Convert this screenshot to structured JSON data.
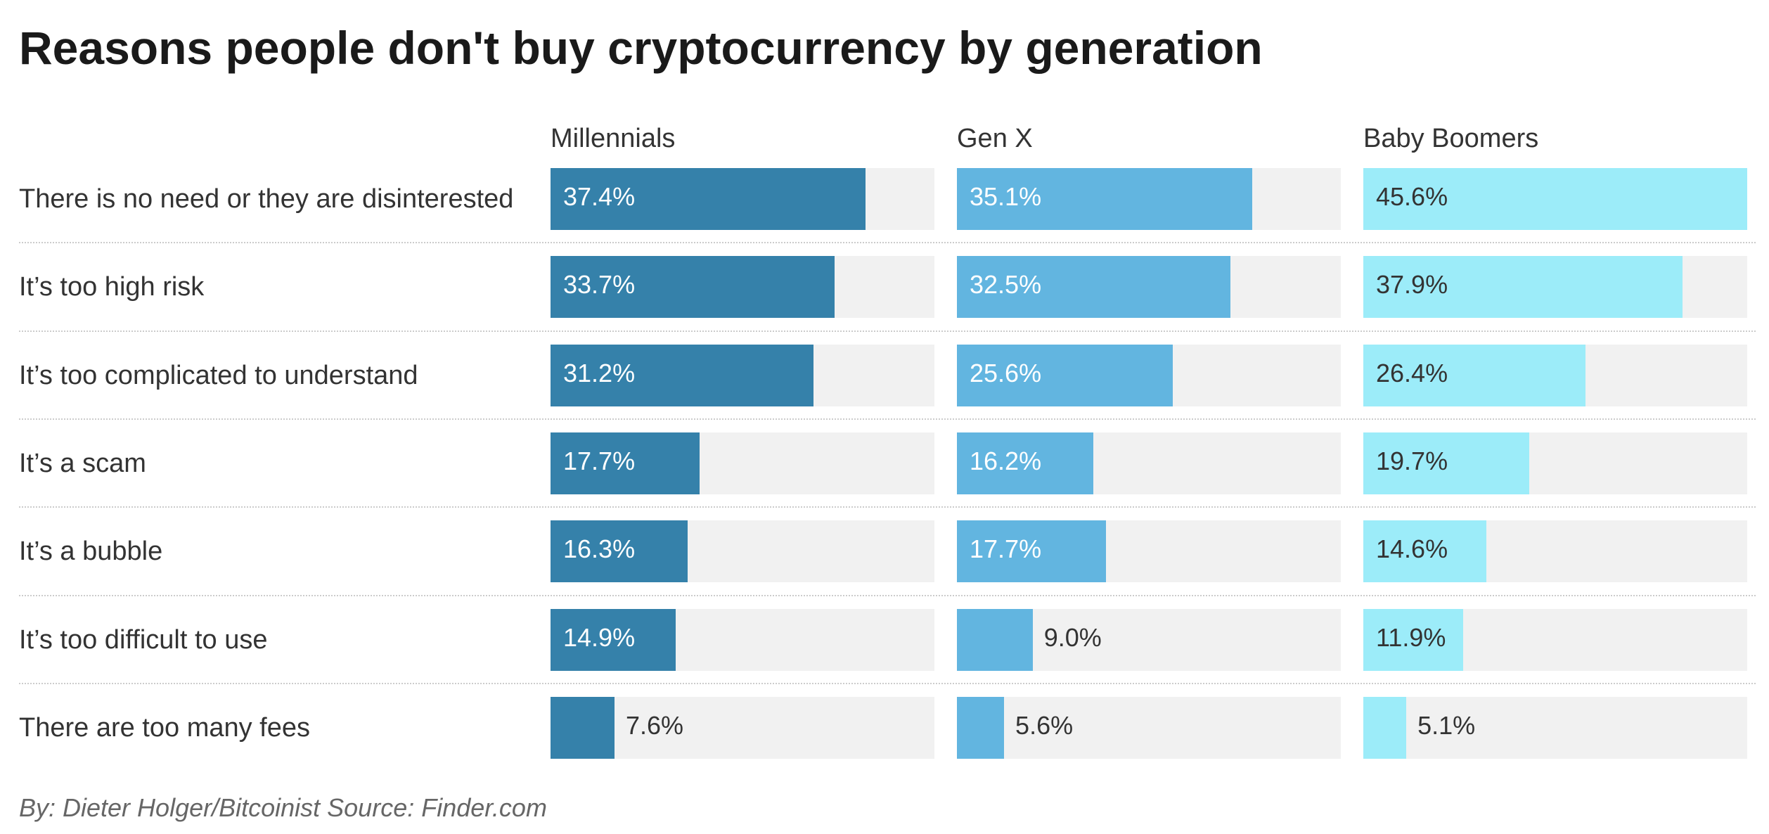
{
  "chart_data": {
    "type": "bar",
    "orientation": "horizontal",
    "layout": "small-multiples",
    "title": "Reasons people don't buy cryptocurrency by generation",
    "categories": [
      "There is no need or they are disinterested",
      "It’s too high risk",
      "It’s too complicated to understand",
      "It’s a scam",
      "It’s a bubble",
      "It’s too difficult to use",
      "There are too many fees"
    ],
    "series": [
      {
        "name": "Millennials",
        "color": "#3581aa",
        "values": [
          37.4,
          33.7,
          31.2,
          17.7,
          16.3,
          14.9,
          7.6
        ]
      },
      {
        "name": "Gen X",
        "color": "#62b5e0",
        "values": [
          35.1,
          32.5,
          25.6,
          16.2,
          17.7,
          9.0,
          5.6
        ]
      },
      {
        "name": "Baby Boomers",
        "color": "#9cecf9",
        "values": [
          45.6,
          37.9,
          26.4,
          19.7,
          14.6,
          11.9,
          5.1
        ]
      }
    ],
    "value_suffix": "%",
    "xlim": [
      0,
      45.6
    ],
    "grid": false,
    "track_color": "#f1f1f1",
    "footer": "By: Dieter Holger/Bitcoinist Source: Finder.com"
  }
}
